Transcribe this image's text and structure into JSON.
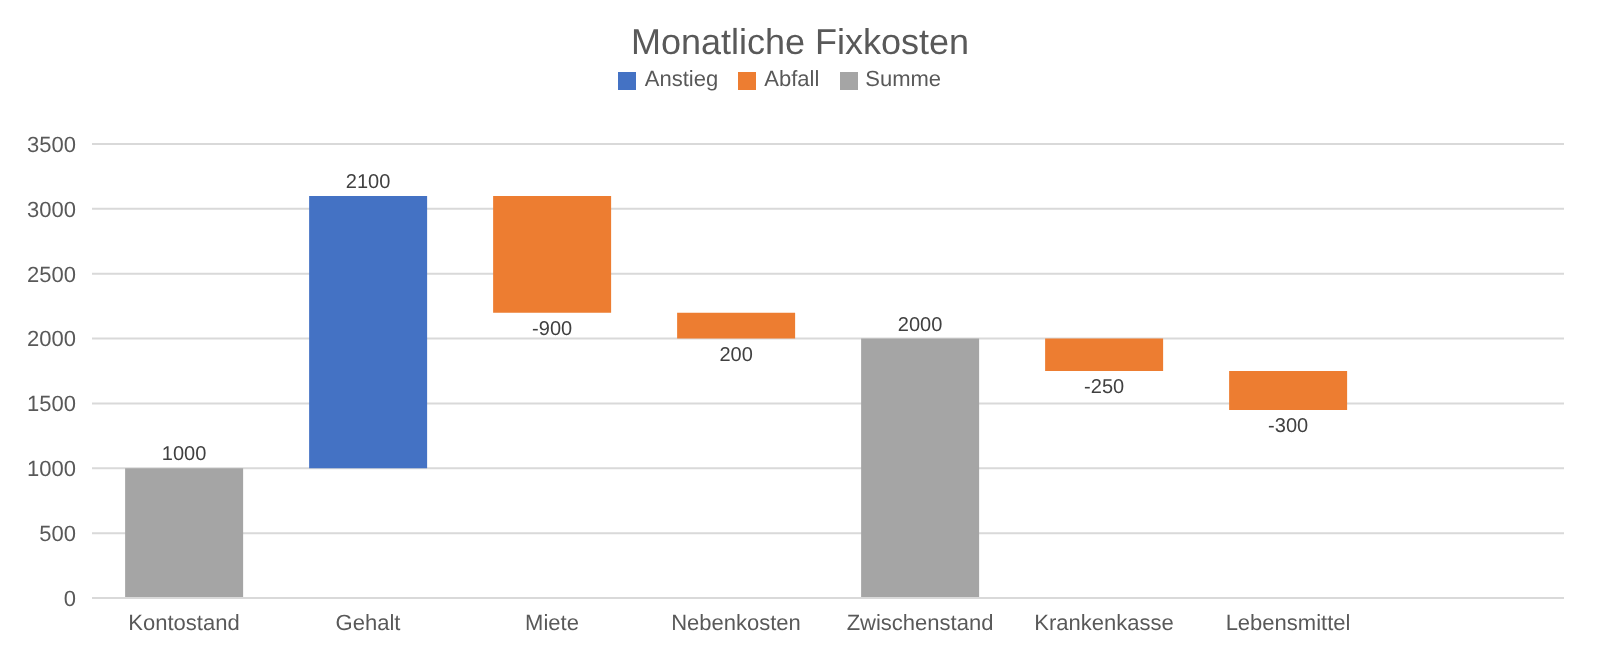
{
  "chart_data": {
    "type": "bar",
    "title": "Monatliche Fixkosten",
    "categories": [
      "Kontostand",
      "Gehalt",
      "Miete",
      "Nebenkosten",
      "Zwischenstand",
      "Krankenkasse",
      "Lebensmittel",
      null
    ],
    "series": [
      {
        "name": "Anstieg",
        "color": "#4472c4",
        "values": [
          null,
          2100,
          null,
          null,
          null,
          null,
          null,
          null
        ],
        "base": [
          null,
          1000,
          null,
          null,
          null,
          null,
          null,
          null
        ]
      },
      {
        "name": "Abfall",
        "color": "#ed7d31",
        "values": [
          null,
          null,
          -900,
          200,
          null,
          -250,
          -300,
          null
        ],
        "base": [
          null,
          null,
          3100,
          2000,
          null,
          2000,
          1750,
          null
        ]
      },
      {
        "name": "Summe",
        "color": "#a5a5a5",
        "values": [
          1000,
          null,
          null,
          null,
          2000,
          null,
          null,
          null
        ],
        "base": [
          0,
          null,
          null,
          null,
          0,
          null,
          null,
          null
        ]
      }
    ],
    "data_labels": true,
    "ylim": [
      0,
      3500
    ],
    "yticks": [
      0,
      500,
      1000,
      1500,
      2000,
      2500,
      3000,
      3500
    ],
    "grid": "y",
    "legend": "top"
  }
}
